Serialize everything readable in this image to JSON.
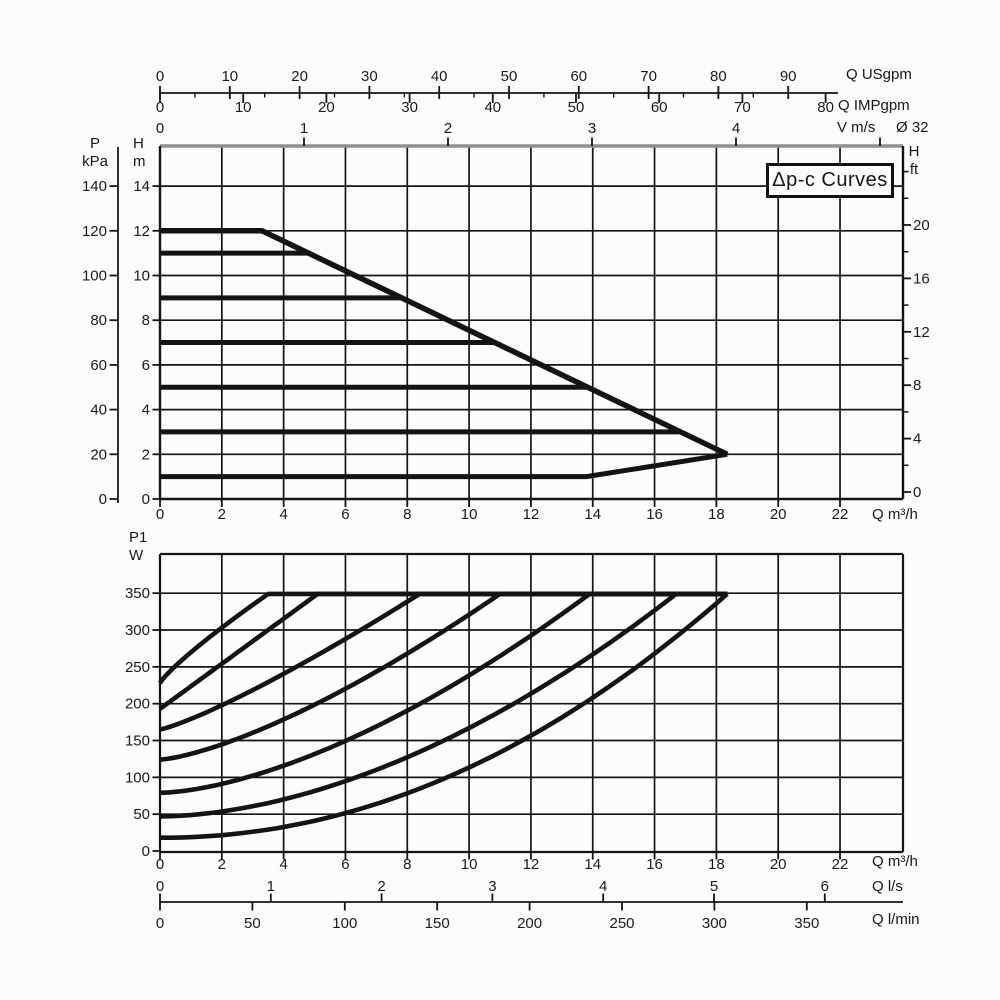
{
  "figure_ink": "#141414",
  "chart_data": [
    {
      "id": "head-capacity-chart",
      "type": "line",
      "title": "Δp-c Curves",
      "xlim_m3h": [
        0,
        24
      ],
      "ylim_m": [
        0,
        15.8
      ],
      "grid": "on",
      "x_axes": [
        {
          "name": "flow-usgpm",
          "label": "Q USgpm",
          "ticks": [
            0,
            10,
            20,
            30,
            40,
            50,
            60,
            70,
            80,
            90
          ]
        },
        {
          "name": "flow-impgpm",
          "label": "Q IMPgpm",
          "ticks": [
            0,
            10,
            20,
            30,
            40,
            50,
            60,
            70,
            80
          ]
        },
        {
          "name": "velocity-ms",
          "label": "V m/s",
          "note": "Ø 32",
          "ticks": [
            0,
            1,
            2,
            3,
            4
          ]
        },
        {
          "name": "flow-m3h",
          "label": "Q m³/h",
          "ticks": [
            0,
            2,
            4,
            6,
            8,
            10,
            12,
            14,
            16,
            18,
            20,
            22
          ]
        }
      ],
      "y_axes": [
        {
          "name": "pressure-kpa",
          "label_lines": [
            "P",
            "kPa"
          ],
          "ticks": [
            140,
            120,
            100,
            80,
            60,
            40,
            20,
            0
          ]
        },
        {
          "name": "head-m",
          "label_lines": [
            "H",
            "m"
          ],
          "ticks": [
            14,
            12,
            10,
            8,
            6,
            4,
            2,
            0
          ]
        },
        {
          "name": "head-ft",
          "label_lines": [
            "H",
            "ft"
          ],
          "ticks": [
            20,
            16,
            12,
            8,
            4,
            0
          ],
          "minor_ticks": [
            2,
            6,
            10,
            14,
            18,
            22,
            24
          ]
        }
      ],
      "series": [
        {
          "name": "max-curve-12m",
          "points_q_h": [
            [
              0,
              12
            ],
            [
              3.3,
              12
            ],
            [
              18.35,
              2
            ]
          ]
        },
        {
          "name": "dp-c-11m",
          "points_q_h": [
            [
              0,
              11
            ],
            [
              4.81,
              11
            ]
          ]
        },
        {
          "name": "dp-c-9m",
          "points_q_h": [
            [
              0,
              9
            ],
            [
              7.82,
              9
            ]
          ]
        },
        {
          "name": "dp-c-7m",
          "points_q_h": [
            [
              0,
              7
            ],
            [
              10.84,
              7
            ]
          ]
        },
        {
          "name": "dp-c-5m",
          "points_q_h": [
            [
              0,
              5
            ],
            [
              13.85,
              5
            ]
          ]
        },
        {
          "name": "dp-c-3m",
          "points_q_h": [
            [
              0,
              3
            ],
            [
              16.85,
              3
            ]
          ]
        },
        {
          "name": "min-curve-1m",
          "points_q_h": [
            [
              0,
              1
            ],
            [
              13.8,
              1
            ],
            [
              18.35,
              2
            ]
          ]
        }
      ]
    },
    {
      "id": "power-input-chart",
      "type": "line",
      "xlim_m3h": [
        0,
        24
      ],
      "ylim_w": [
        0,
        404
      ],
      "grid": "on",
      "y_axis": {
        "name": "power-p1-w",
        "label_lines": [
          "P1",
          "W"
        ],
        "ticks": [
          350,
          300,
          250,
          200,
          150,
          100,
          50,
          0
        ]
      },
      "x_axes": [
        {
          "name": "flow-m3h",
          "label": "Q m³/h",
          "ticks": [
            0,
            2,
            4,
            6,
            8,
            10,
            12,
            14,
            16,
            18,
            20,
            22
          ]
        },
        {
          "name": "flow-ls",
          "label": "Q l/s",
          "ticks": [
            0,
            1,
            2,
            3,
            4,
            5,
            6
          ]
        },
        {
          "name": "flow-lmin",
          "label": "Q l/min",
          "ticks": [
            0,
            50,
            100,
            150,
            200,
            250,
            300,
            350
          ]
        }
      ],
      "max_power_w": 349,
      "plateau_end_q_m3h": 18.35,
      "series": [
        {
          "name": "p1-max-12m",
          "start_w": 228,
          "knee_q_m3h": 3.5,
          "shape_exp": 0.85
        },
        {
          "name": "p1-11m",
          "start_w": 193,
          "knee_q_m3h": 5.1,
          "shape_exp": 1.0
        },
        {
          "name": "p1-9m",
          "start_w": 165,
          "knee_q_m3h": 8.4,
          "shape_exp": 1.2
        },
        {
          "name": "p1-7m",
          "start_w": 124,
          "knee_q_m3h": 11.0,
          "shape_exp": 1.4
        },
        {
          "name": "p1-5m",
          "start_w": 79,
          "knee_q_m3h": 13.9,
          "shape_exp": 1.6
        },
        {
          "name": "p1-3m",
          "start_w": 47,
          "knee_q_m3h": 16.7,
          "shape_exp": 1.8
        },
        {
          "name": "p1-min-1m",
          "start_w": 18,
          "knee_q_m3h": 18.35,
          "shape_exp": 2.05
        }
      ]
    }
  ]
}
